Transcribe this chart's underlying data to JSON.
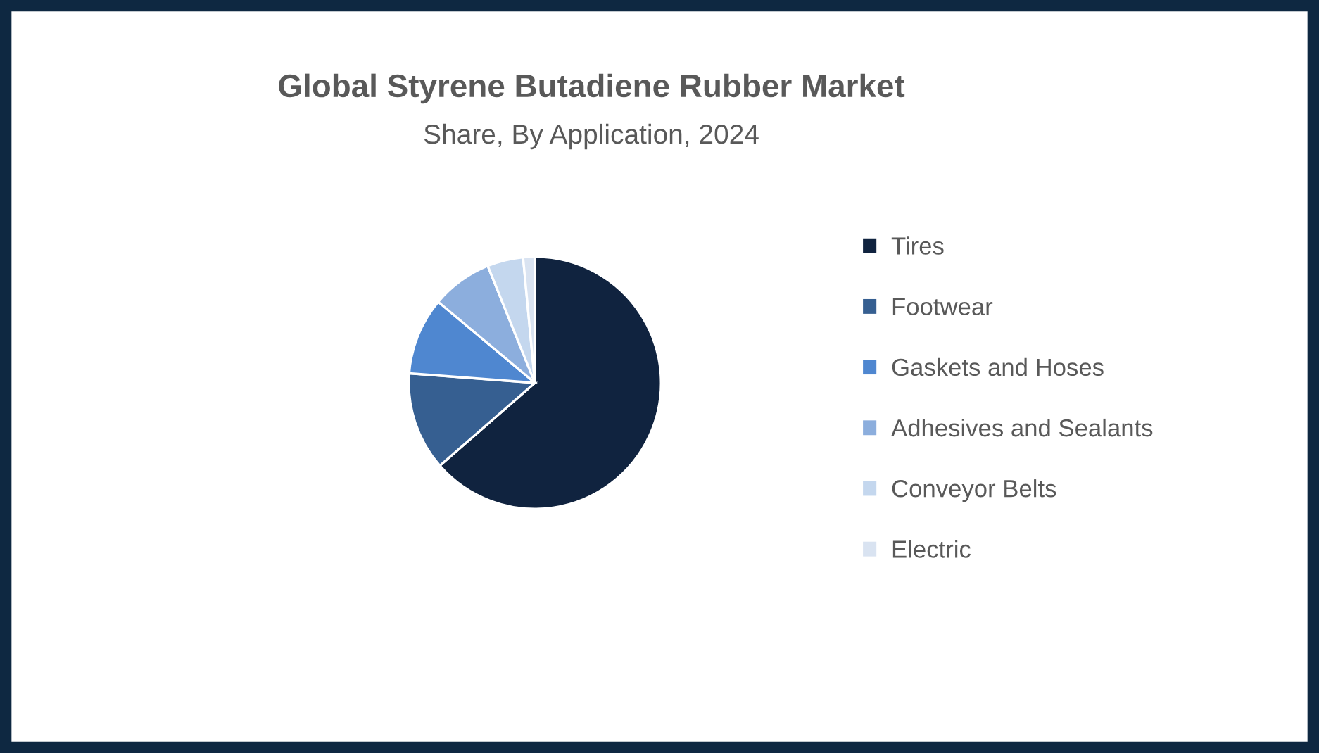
{
  "chart_data": {
    "type": "pie",
    "title": "Global Styrene Butadiene Rubber Market",
    "subtitle": "Share, By Application, 2024",
    "categories": [
      "Tires",
      "Footwear",
      "Gaskets and Hoses",
      "Adhesives and Sealants",
      "Conveyor Belts",
      "Electric"
    ],
    "values": [
      63.6,
      12.6,
      9.9,
      7.8,
      4.6,
      1.5
    ],
    "colors": [
      "#10233f",
      "#365f91",
      "#4f87d0",
      "#8caedd",
      "#c4d7ee",
      "#d9e3f1"
    ],
    "legend": "right"
  }
}
